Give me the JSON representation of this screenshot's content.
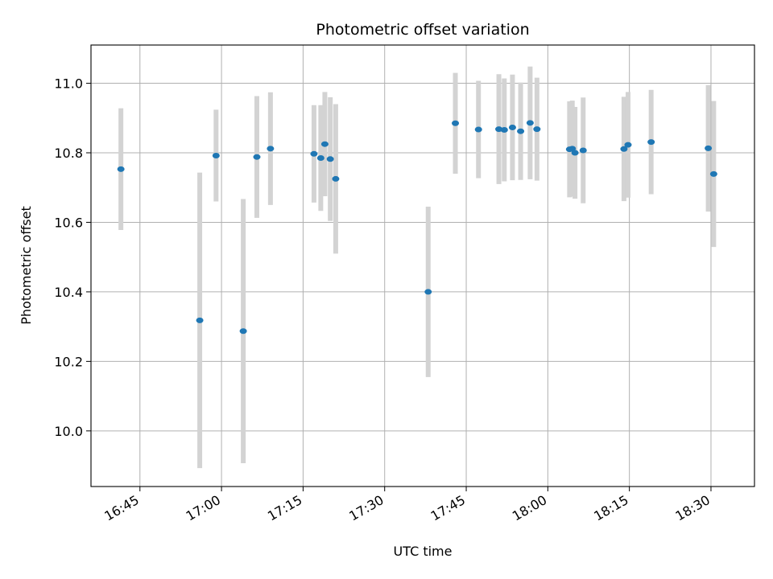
{
  "chart_data": {
    "type": "scatter",
    "title": "Photometric offset variation",
    "xlabel": "UTC time",
    "ylabel": "Photometric offset",
    "x_unit": "UTC time (HH:MM)",
    "xlim": [
      "16:36",
      "18:38"
    ],
    "ylim": [
      9.84,
      11.11
    ],
    "x_ticks": [
      "16:45",
      "17:00",
      "17:15",
      "17:30",
      "17:45",
      "18:00",
      "18:15",
      "18:30"
    ],
    "y_ticks": [
      10.0,
      10.2,
      10.4,
      10.6,
      10.8,
      11.0
    ],
    "grid": true,
    "point_color": "#1f77b4",
    "errorbar_color": "#d3d3d3",
    "points": [
      {
        "x": "16:41:30",
        "y": 10.753,
        "err": 0.175
      },
      {
        "x": "16:56:00",
        "y": 10.318,
        "err": 0.425
      },
      {
        "x": "16:59:00",
        "y": 10.792,
        "err": 0.132
      },
      {
        "x": "17:04:00",
        "y": 10.287,
        "err": 0.38
      },
      {
        "x": "17:06:30",
        "y": 10.788,
        "err": 0.175
      },
      {
        "x": "17:09:00",
        "y": 10.812,
        "err": 0.162
      },
      {
        "x": "17:17:00",
        "y": 10.797,
        "err": 0.14
      },
      {
        "x": "17:18:15",
        "y": 10.785,
        "err": 0.152
      },
      {
        "x": "17:19:00",
        "y": 10.825,
        "err": 0.15
      },
      {
        "x": "17:20:00",
        "y": 10.782,
        "err": 0.178
      },
      {
        "x": "17:21:00",
        "y": 10.725,
        "err": 0.215
      },
      {
        "x": "17:38:00",
        "y": 10.4,
        "err": 0.245
      },
      {
        "x": "17:43:00",
        "y": 10.885,
        "err": 0.145
      },
      {
        "x": "17:47:15",
        "y": 10.867,
        "err": 0.14
      },
      {
        "x": "17:51:00",
        "y": 10.868,
        "err": 0.158
      },
      {
        "x": "17:52:00",
        "y": 10.866,
        "err": 0.148
      },
      {
        "x": "17:53:30",
        "y": 10.873,
        "err": 0.152
      },
      {
        "x": "17:55:00",
        "y": 10.862,
        "err": 0.14
      },
      {
        "x": "17:56:45",
        "y": 10.886,
        "err": 0.162
      },
      {
        "x": "17:58:00",
        "y": 10.868,
        "err": 0.148
      },
      {
        "x": "18:04:00",
        "y": 10.81,
        "err": 0.138
      },
      {
        "x": "18:04:30",
        "y": 10.812,
        "err": 0.138
      },
      {
        "x": "18:05:00",
        "y": 10.8,
        "err": 0.132
      },
      {
        "x": "18:06:30",
        "y": 10.807,
        "err": 0.152
      },
      {
        "x": "18:14:00",
        "y": 10.811,
        "err": 0.15
      },
      {
        "x": "18:14:45",
        "y": 10.823,
        "err": 0.152
      },
      {
        "x": "18:19:00",
        "y": 10.831,
        "err": 0.15
      },
      {
        "x": "18:29:30",
        "y": 10.813,
        "err": 0.182
      },
      {
        "x": "18:30:30",
        "y": 10.739,
        "err": 0.21
      }
    ]
  }
}
